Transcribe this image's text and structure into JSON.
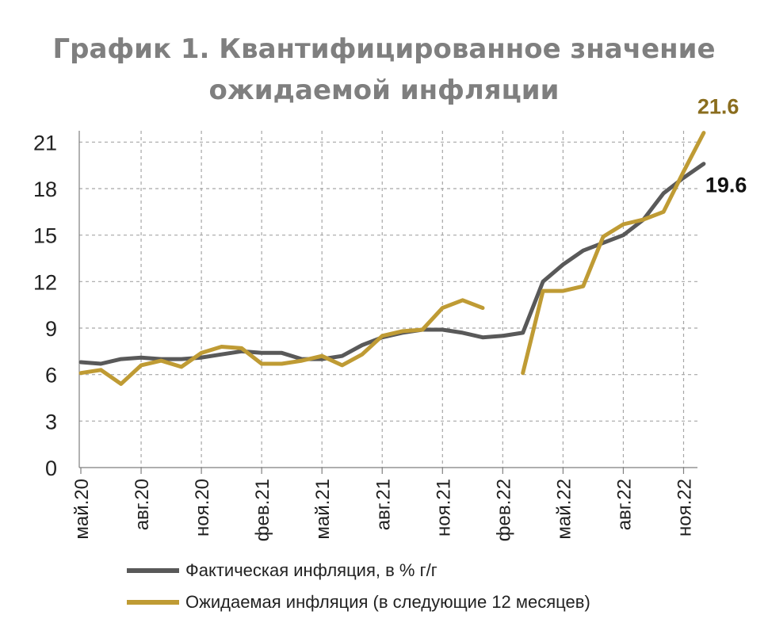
{
  "title": {
    "line1": "График 1. Квантифицированное значение",
    "line2": "ожидаемой инфляции"
  },
  "colors": {
    "actual": "#595959",
    "expected": "#bf9b34",
    "actual_label": "#111111",
    "expected_label": "#8a6d1e",
    "grid": "#a6a6a6"
  },
  "chart_data": {
    "type": "line",
    "ylim": [
      0,
      22.5
    ],
    "yticks": [
      0,
      3,
      6,
      9,
      12,
      15,
      18,
      21
    ],
    "x_tick_labels": [
      {
        "index": 0,
        "label": "май.20"
      },
      {
        "index": 3,
        "label": "авг.20"
      },
      {
        "index": 6,
        "label": "ноя.20"
      },
      {
        "index": 9,
        "label": "фев.21"
      },
      {
        "index": 12,
        "label": "май.21"
      },
      {
        "index": 15,
        "label": "авг.21"
      },
      {
        "index": 18,
        "label": "ноя.21"
      },
      {
        "index": 21,
        "label": "фев.22"
      },
      {
        "index": 24,
        "label": "май.22"
      },
      {
        "index": 27,
        "label": "авг.22"
      },
      {
        "index": 30,
        "label": "ноя.22"
      }
    ],
    "grid": true,
    "legend_position": "bottom",
    "series": [
      {
        "name": "Фактическая инфляция, в % г/г",
        "color": "#595959",
        "values": [
          6.8,
          6.7,
          7.0,
          7.1,
          7.0,
          7.0,
          7.1,
          7.3,
          7.5,
          7.4,
          7.4,
          7.0,
          7.0,
          7.2,
          7.9,
          8.4,
          8.7,
          8.9,
          8.9,
          8.7,
          8.4,
          8.5,
          8.7,
          12.0,
          13.1,
          14.0,
          14.5,
          15.0,
          16.0,
          17.7,
          18.7,
          19.6
        ],
        "end_label": "19.6"
      },
      {
        "name": "Ожидаемая инфляция (в следующие 12 месяцев)",
        "color": "#bf9b34",
        "segments": [
          {
            "start_index": 0,
            "values": [
              6.1,
              6.3,
              5.4,
              6.6,
              6.9,
              6.5,
              7.4,
              7.8,
              7.7,
              6.7,
              6.7,
              6.9,
              7.2,
              6.6,
              7.3,
              8.5,
              8.8,
              8.9,
              10.3,
              10.8,
              10.3
            ]
          },
          {
            "start_index": 22,
            "values": [
              6.1,
              11.4,
              11.4,
              11.7,
              14.9,
              15.7,
              16.0,
              16.5,
              19.1,
              21.6
            ]
          }
        ],
        "end_label": "21.6"
      }
    ]
  }
}
